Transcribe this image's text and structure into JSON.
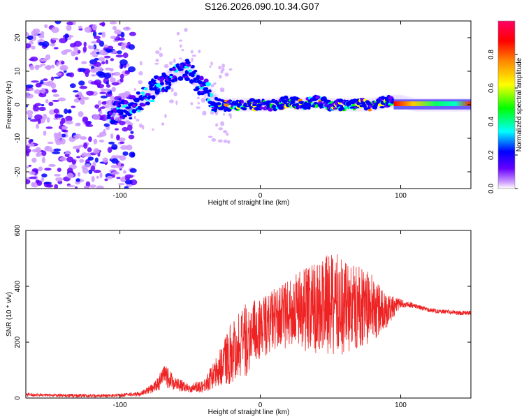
{
  "figure_title": "S126.2026.090.10.34.G07",
  "colors": {
    "line": "#ee2222",
    "frame": "#000000",
    "colormap": [
      "#ffffff",
      "#cc99ff",
      "#6600ff",
      "#0000ff",
      "#00ffff",
      "#00ff00",
      "#ffff00",
      "#ff8800",
      "#ff0000",
      "#ff0066"
    ]
  },
  "chart_data": [
    {
      "type": "heatmap",
      "name": "spectrogram",
      "xlabel": "Height of straight line (km)",
      "ylabel": "Frequency (Hz)",
      "xlim": [
        -167,
        150
      ],
      "ylim": [
        -25,
        25
      ],
      "xticks": [
        -100,
        0,
        100
      ],
      "xtick_labels": [
        "-100",
        "0",
        "100"
      ],
      "yticks": [
        -20,
        -10,
        0,
        10,
        20
      ],
      "ytick_labels": [
        "-20",
        "-10",
        "0",
        "10",
        "20"
      ],
      "colorbar": {
        "label": "Normalized spectral amplitude",
        "range": [
          0,
          1
        ],
        "ticks": [
          0,
          0.2,
          0.4,
          0.6,
          0.8
        ],
        "tick_labels": [
          "0.0",
          "0.2",
          "0.4",
          "0.6",
          "0.8"
        ]
      },
      "band_center": [
        [
          -105,
          -3
        ],
        [
          -100,
          -2
        ],
        [
          -95,
          -2
        ],
        [
          -90,
          0
        ],
        [
          -85,
          1
        ],
        [
          -80,
          3
        ],
        [
          -75,
          5
        ],
        [
          -70,
          6
        ],
        [
          -65,
          8
        ],
        [
          -60,
          9
        ],
        [
          -55,
          11
        ],
        [
          -50,
          10
        ],
        [
          -45,
          7
        ],
        [
          -40,
          5
        ],
        [
          -35,
          2
        ],
        [
          -30,
          0
        ],
        [
          -20,
          0
        ],
        [
          -10,
          0
        ],
        [
          0,
          0
        ],
        [
          10,
          0
        ],
        [
          20,
          1
        ],
        [
          30,
          0
        ],
        [
          40,
          1
        ],
        [
          50,
          0
        ],
        [
          60,
          0
        ],
        [
          70,
          0
        ],
        [
          80,
          0
        ],
        [
          90,
          1
        ],
        [
          100,
          1
        ],
        [
          110,
          0
        ],
        [
          120,
          0
        ],
        [
          130,
          0
        ],
        [
          140,
          0
        ],
        [
          150,
          0
        ]
      ],
      "noise_region_x": [
        -167,
        -90
      ],
      "strong_segment_x": [
        95,
        150
      ]
    },
    {
      "type": "line",
      "name": "snr",
      "xlabel": "Height of straight line (km)",
      "ylabel": "SNR (10 * v/v)",
      "xlim": [
        -167,
        150
      ],
      "ylim": [
        0,
        600
      ],
      "xticks": [
        -100,
        0,
        100
      ],
      "xtick_labels": [
        "-100",
        "0",
        "100"
      ],
      "yticks": [
        0,
        200,
        400,
        600
      ],
      "ytick_labels": [
        "0",
        "200",
        "400",
        "600"
      ],
      "envelope_x": [
        -167,
        -150,
        -120,
        -100,
        -85,
        -75,
        -68,
        -60,
        -50,
        -40,
        -30,
        -25,
        -20,
        -10,
        0,
        10,
        20,
        30,
        40,
        50,
        60,
        65,
        70,
        80,
        90,
        95,
        100,
        110,
        120,
        130,
        140,
        150
      ],
      "envelope_base": [
        12,
        10,
        8,
        10,
        15,
        40,
        80,
        50,
        35,
        45,
        100,
        140,
        170,
        210,
        250,
        280,
        300,
        320,
        330,
        335,
        330,
        320,
        330,
        320,
        310,
        330,
        340,
        330,
        315,
        310,
        305,
        305
      ],
      "envelope_amp": [
        6,
        6,
        6,
        6,
        8,
        20,
        40,
        25,
        15,
        25,
        60,
        90,
        120,
        130,
        110,
        110,
        120,
        150,
        170,
        180,
        190,
        160,
        150,
        120,
        60,
        40,
        15,
        8,
        8,
        8,
        8,
        8
      ]
    }
  ]
}
